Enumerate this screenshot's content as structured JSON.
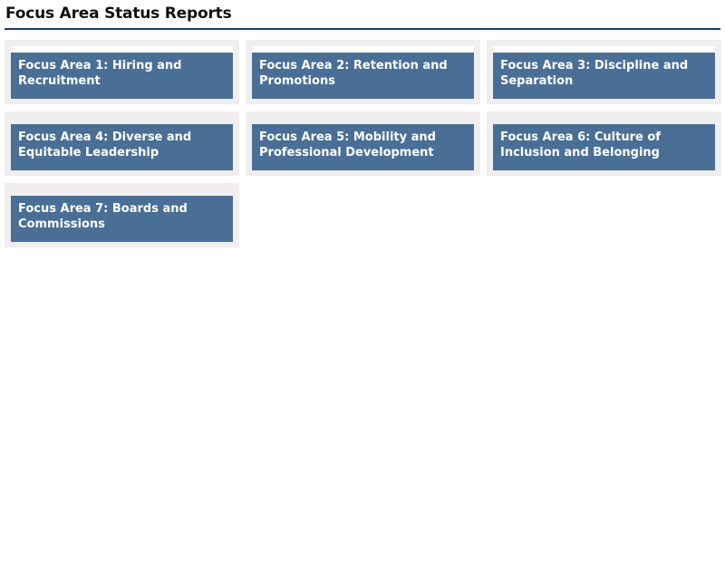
{
  "header": {
    "title": "Focus Area Status Reports"
  },
  "focus_areas": [
    {
      "label": "Focus Area 1: Hiring and Recruitment"
    },
    {
      "label": "Focus Area 2: Retention and Promotions"
    },
    {
      "label": "Focus Area 3: Discipline and Separation"
    },
    {
      "label": "Focus Area 4: Diverse and Equitable Leadership"
    },
    {
      "label": "Focus Area 5: Mobility and Professional Development"
    },
    {
      "label": "Focus Area 6: Culture of Inclusion and Belonging"
    },
    {
      "label": "Focus Area 7: Boards and Commissions"
    }
  ],
  "colors": {
    "tile_background": "#4a6f96",
    "tile_frame": "#f0eeee",
    "header_rule": "#1c3a5e",
    "tile_text": "#ffffff"
  }
}
